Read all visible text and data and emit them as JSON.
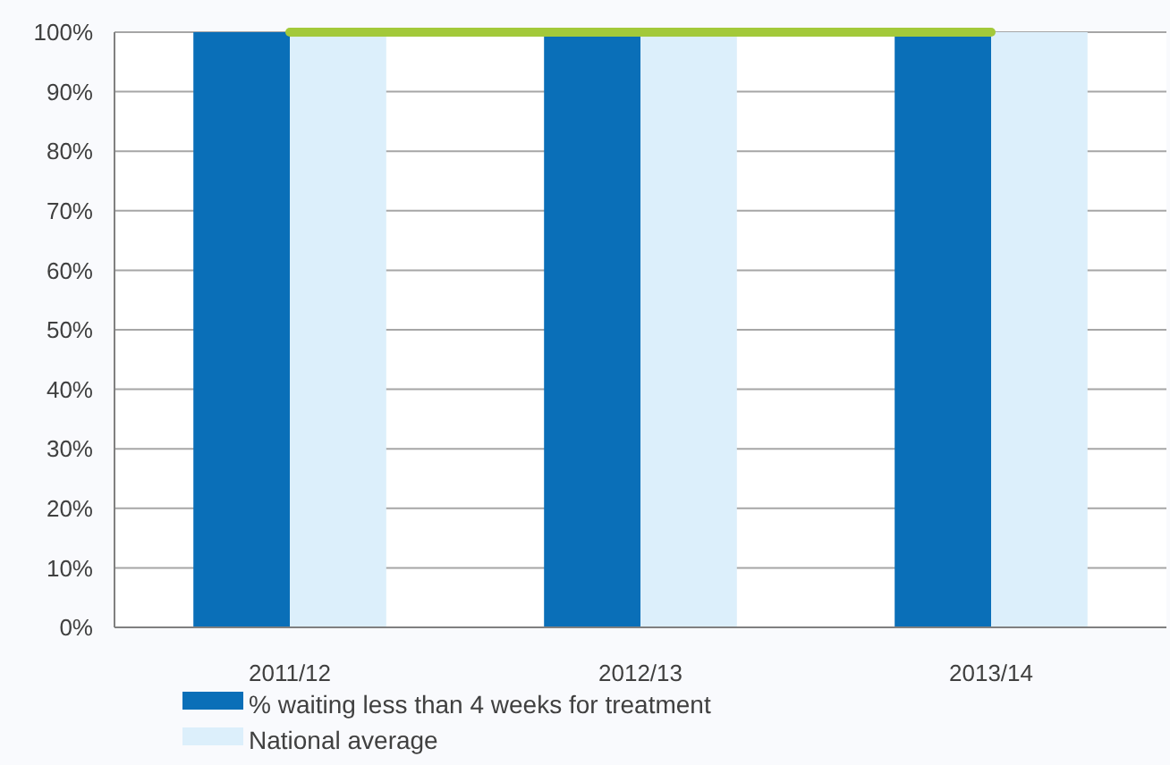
{
  "chart_data": {
    "type": "bar",
    "categories": [
      "2011/12",
      "2012/13",
      "2013/14"
    ],
    "series": [
      {
        "name": "% waiting less than 4 weeks for treatment",
        "color": "#0a6fb8",
        "values": [
          100,
          99.5,
          99.5
        ]
      },
      {
        "name": "National average",
        "color": "#dceffb",
        "values": [
          99.5,
          99.5,
          100
        ]
      },
      {
        "type": "line",
        "color": "#a3c93a",
        "values": [
          100,
          100,
          100
        ]
      }
    ],
    "ylim": [
      0,
      100
    ],
    "yticks": [
      {
        "value": 0,
        "label": "0%"
      },
      {
        "value": 10,
        "label": "10%"
      },
      {
        "value": 20,
        "label": "20%"
      },
      {
        "value": 30,
        "label": "30%"
      },
      {
        "value": 40,
        "label": "40%"
      },
      {
        "value": 50,
        "label": "50%"
      },
      {
        "value": 60,
        "label": "60%"
      },
      {
        "value": 70,
        "label": "70%"
      },
      {
        "value": 80,
        "label": "80%"
      },
      {
        "value": 90,
        "label": "90%"
      },
      {
        "value": 100,
        "label": "100%"
      }
    ],
    "grid": "y",
    "legend": "bottom"
  }
}
